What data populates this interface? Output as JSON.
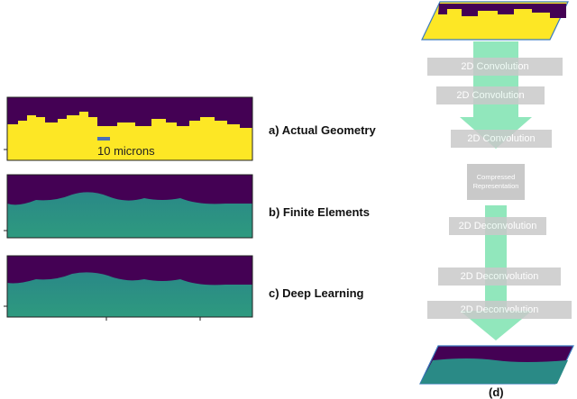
{
  "panels": {
    "a": {
      "label": "a)  Actual Geometry",
      "scale_bar_label": "10 microns"
    },
    "b": {
      "label": "b) Finite Elements"
    },
    "c": {
      "label": "c) Deep Learning"
    }
  },
  "network": {
    "layers": [
      {
        "label": "2D Convolution"
      },
      {
        "label": "2D Convolution"
      },
      {
        "label": "2D Convolution"
      },
      {
        "label": "Compressed Representation"
      },
      {
        "label": "2D Deconvolution"
      },
      {
        "label": "2D Deconvolution"
      },
      {
        "label": "2D Deconvolution"
      }
    ],
    "panel_label": "(d)"
  },
  "colors": {
    "dark_purple": "#440154",
    "yellow": "#fde725",
    "teal": "#2a8a86",
    "arrow_green": "#7ee3b0",
    "layer_gray": "#c9c9c9"
  }
}
